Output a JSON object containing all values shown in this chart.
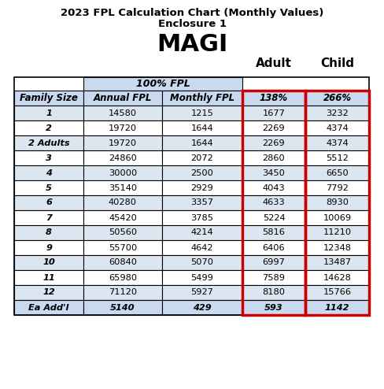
{
  "title1": "2023 FPL Calculation Chart (Monthly Values)",
  "title2": "Enclosure 1",
  "subtitle": "MAGI",
  "col_headers": [
    "Family Size",
    "Annual FPL",
    "Monthly FPL",
    "138%",
    "266%"
  ],
  "col_group_header": "100% FPL",
  "adult_label": "Adult",
  "child_label": "Child",
  "rows": [
    [
      "1",
      "14580",
      "1215",
      "1677",
      "3232"
    ],
    [
      "2",
      "19720",
      "1644",
      "2269",
      "4374"
    ],
    [
      "2 Adults",
      "19720",
      "1644",
      "2269",
      "4374"
    ],
    [
      "3",
      "24860",
      "2072",
      "2860",
      "5512"
    ],
    [
      "4",
      "30000",
      "2500",
      "3450",
      "6650"
    ],
    [
      "5",
      "35140",
      "2929",
      "4043",
      "7792"
    ],
    [
      "6",
      "40280",
      "3357",
      "4633",
      "8930"
    ],
    [
      "7",
      "45420",
      "3785",
      "5224",
      "10069"
    ],
    [
      "8",
      "50560",
      "4214",
      "5816",
      "11210"
    ],
    [
      "9",
      "55700",
      "4642",
      "6406",
      "12348"
    ],
    [
      "10",
      "60840",
      "5070",
      "6997",
      "13487"
    ],
    [
      "11",
      "65980",
      "5499",
      "7589",
      "14628"
    ],
    [
      "12",
      "71120",
      "5927",
      "8180",
      "15766"
    ],
    [
      "Ea Add'l",
      "5140",
      "429",
      "593",
      "1142"
    ]
  ],
  "header_bg": "#c9d9f0",
  "row_bg_even": "#dce6f1",
  "row_bg_odd": "#ffffff",
  "last_row_bg": "#c9d9f0",
  "red_border_color": "#cc0000",
  "table_border_color": "#000000",
  "text_color": "#000000",
  "fig_w": 4.89,
  "fig_h": 4.94,
  "dpi": 100
}
